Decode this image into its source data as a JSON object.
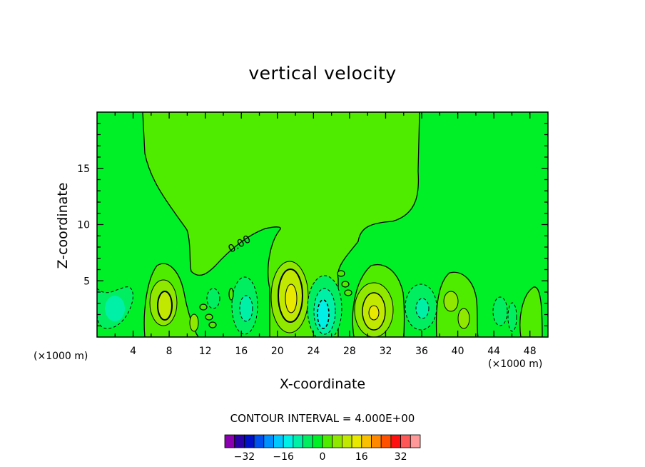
{
  "chart_data": {
    "type": "contour",
    "title": "vertical velocity",
    "xlabel": "X-coordinate",
    "ylabel": "Z-coordinate",
    "x_unit_left": "(×1000 m)",
    "x_unit_right": "(×1000 m)",
    "xlim": [
      0,
      50
    ],
    "ylim": [
      0,
      20
    ],
    "x_ticks": [
      "4",
      "8",
      "12",
      "16",
      "20",
      "24",
      "28",
      "32",
      "36",
      "40",
      "44",
      "48"
    ],
    "y_ticks": [
      "5",
      "10",
      "15"
    ],
    "contour_interval_text": "CONTOUR INTERVAL = 4.000E+00",
    "contour_label": "0.00",
    "colorbar": {
      "levels": [
        -36,
        -32,
        -28,
        -24,
        -20,
        -16,
        -12,
        -8,
        -4,
        0,
        4,
        8,
        12,
        16,
        20,
        24,
        28,
        32,
        36
      ],
      "colors": [
        "#8a00b0",
        "#2a00a8",
        "#0010c8",
        "#0050f0",
        "#0090ff",
        "#00c8ff",
        "#00f0e8",
        "#00f0a8",
        "#00ee60",
        "#00f028",
        "#50ec00",
        "#90e800",
        "#c0e800",
        "#e8e800",
        "#f8c000",
        "#ff8800",
        "#ff5000",
        "#ff1010",
        "#ff5858",
        "#ff9898"
      ],
      "tick_labels": [
        "−32",
        "−16",
        "0",
        "16",
        "32"
      ],
      "tick_values": [
        -32,
        -16,
        0,
        16,
        32
      ]
    },
    "features": [
      {
        "kind": "updraft",
        "x": 7.6,
        "z": 3.3,
        "peak": 12
      },
      {
        "kind": "updraft",
        "x": 21.7,
        "z": 3.6,
        "peak": 16
      },
      {
        "kind": "updraft",
        "x": 30.6,
        "z": 2.4,
        "peak": 12
      },
      {
        "kind": "updraft",
        "x": 39.2,
        "z": 3.1,
        "peak": 8
      },
      {
        "kind": "downdraft",
        "x": 25.1,
        "z": 2.3,
        "peak": -12
      },
      {
        "kind": "downdraft",
        "x": 16.5,
        "z": 2.5,
        "peak": -8
      },
      {
        "kind": "downdraft",
        "x": 35.6,
        "z": 2.3,
        "peak": -8
      },
      {
        "kind": "downdraft",
        "x": 2.0,
        "z": 2.3,
        "peak": -4
      }
    ]
  }
}
